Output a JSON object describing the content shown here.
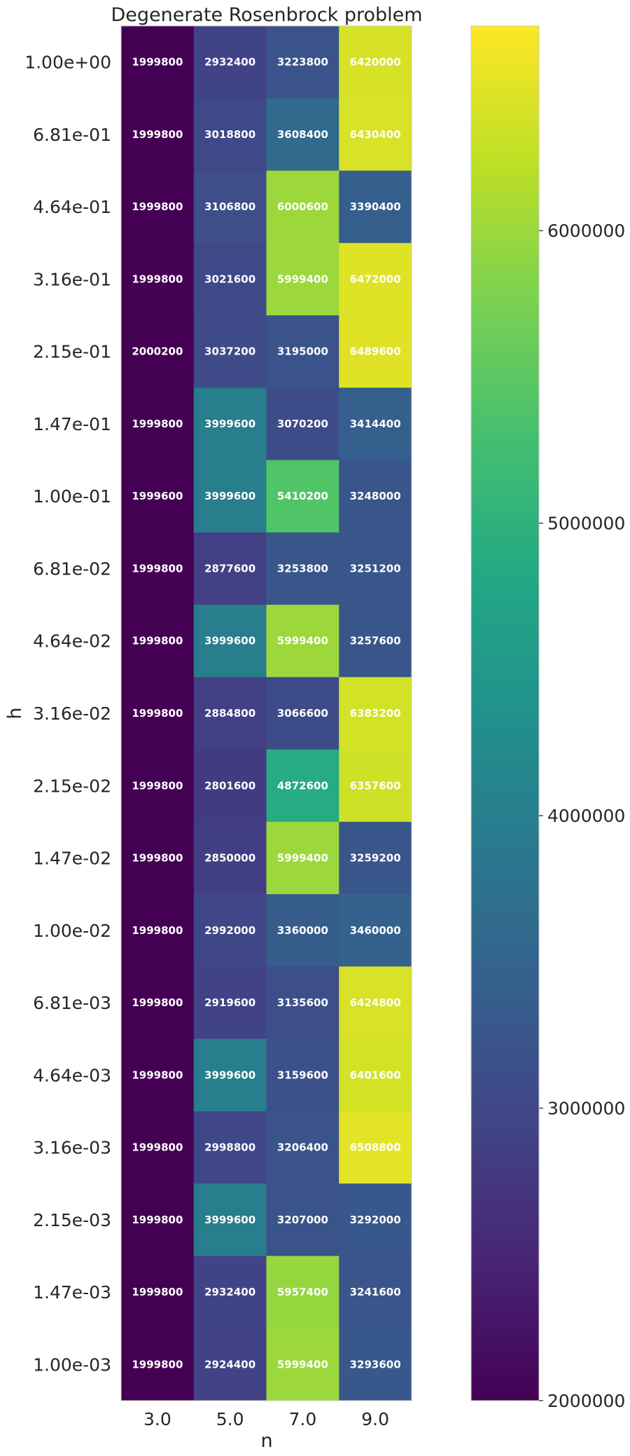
{
  "chart_data": {
    "type": "heatmap",
    "title": "Degenerate Rosenbrock problem",
    "xlabel": "n",
    "ylabel": "h",
    "x_categories": [
      "3.0",
      "5.0",
      "7.0",
      "9.0"
    ],
    "y_categories": [
      "1.00e+00",
      "6.81e-01",
      "4.64e-01",
      "3.16e-01",
      "2.15e-01",
      "1.47e-01",
      "1.00e-01",
      "6.81e-02",
      "4.64e-02",
      "3.16e-02",
      "2.15e-02",
      "1.47e-02",
      "1.00e-02",
      "6.81e-03",
      "4.64e-03",
      "3.16e-03",
      "2.15e-03",
      "1.47e-03",
      "1.00e-03"
    ],
    "values": [
      [
        1999800,
        2932400,
        3223800,
        6420000
      ],
      [
        1999800,
        3018800,
        3608400,
        6430400
      ],
      [
        1999800,
        3106800,
        6000600,
        3390400
      ],
      [
        1999800,
        3021600,
        5999400,
        6472000
      ],
      [
        2000200,
        3037200,
        3195000,
        6489600
      ],
      [
        1999800,
        3999600,
        3070200,
        3414400
      ],
      [
        1999600,
        3999600,
        5410200,
        3248000
      ],
      [
        1999800,
        2877600,
        3253800,
        3251200
      ],
      [
        1999800,
        3999600,
        5999400,
        3257600
      ],
      [
        1999800,
        2884800,
        3066600,
        6383200
      ],
      [
        1999800,
        2801600,
        4872600,
        6357600
      ],
      [
        1999800,
        2850000,
        5999400,
        3259200
      ],
      [
        1999800,
        2992000,
        3360000,
        3460000
      ],
      [
        1999800,
        2919600,
        3135600,
        6424800
      ],
      [
        1999800,
        3999600,
        3159600,
        6401600
      ],
      [
        1999800,
        2998800,
        3206400,
        6508800
      ],
      [
        1999800,
        3999600,
        3207000,
        3292000
      ],
      [
        1999800,
        2932400,
        5957400,
        3241600
      ],
      [
        1999800,
        2924400,
        5999400,
        3293600
      ]
    ],
    "colormap": "viridis",
    "colorbar": {
      "range": [
        2000000,
        6700000
      ],
      "ticks": [
        2000000,
        3000000,
        4000000,
        5000000,
        6000000
      ],
      "tick_labels": [
        "2000000",
        "3000000",
        "4000000",
        "5000000",
        "6000000"
      ]
    },
    "grid": false
  }
}
